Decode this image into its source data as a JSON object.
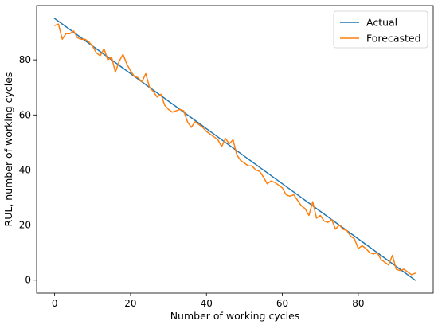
{
  "chart_data": {
    "type": "line",
    "title": "",
    "xlabel": "Number of working cycles",
    "ylabel": "RUL, number of working cycles",
    "xlim": [
      -4.75,
      99.75
    ],
    "ylim": [
      -4.7,
      99.7
    ],
    "xticks": [
      0,
      20,
      40,
      60,
      80
    ],
    "yticks": [
      0,
      20,
      40,
      60,
      80
    ],
    "grid": false,
    "legend": "top-right",
    "series": [
      {
        "name": "Actual",
        "color": "#1f77b4",
        "x": [
          0,
          95
        ],
        "y": [
          95,
          0
        ]
      },
      {
        "name": "Forecasted",
        "color": "#ff7f0e",
        "x": [
          0,
          1,
          2,
          3,
          4,
          5,
          6,
          7,
          8,
          9,
          10,
          11,
          12,
          13,
          14,
          15,
          16,
          17,
          18,
          19,
          20,
          21,
          22,
          23,
          24,
          25,
          26,
          27,
          28,
          29,
          30,
          31,
          32,
          33,
          34,
          35,
          36,
          37,
          38,
          39,
          40,
          41,
          42,
          43,
          44,
          45,
          46,
          47,
          48,
          49,
          50,
          51,
          52,
          53,
          54,
          55,
          56,
          57,
          58,
          59,
          60,
          61,
          62,
          63,
          64,
          65,
          66,
          67,
          68,
          69,
          70,
          71,
          72,
          73,
          74,
          75,
          76,
          77,
          78,
          79,
          80,
          81,
          82,
          83,
          84,
          85,
          86,
          87,
          88,
          89,
          90,
          91,
          92,
          93,
          94,
          95
        ],
        "y": [
          92.5,
          93.0,
          87.5,
          89.5,
          89.5,
          90.5,
          88.0,
          87.5,
          87.5,
          86.5,
          85.0,
          82.5,
          81.5,
          84.0,
          80.0,
          81.0,
          75.5,
          79.5,
          82.0,
          78.5,
          76.0,
          74.0,
          73.5,
          72.0,
          75.0,
          70.0,
          68.5,
          66.5,
          67.5,
          63.5,
          62.0,
          61.0,
          61.5,
          62.0,
          61.5,
          57.5,
          55.5,
          57.5,
          56.5,
          55.5,
          54.0,
          53.0,
          52.0,
          51.0,
          48.5,
          51.5,
          49.5,
          51.0,
          45.5,
          43.5,
          42.5,
          41.5,
          41.5,
          40.0,
          39.5,
          37.5,
          35.0,
          36.0,
          35.5,
          34.5,
          33.5,
          31.0,
          30.5,
          31.0,
          29.0,
          27.0,
          26.0,
          23.5,
          28.5,
          22.5,
          23.5,
          21.5,
          21.0,
          22.0,
          18.5,
          20.0,
          18.5,
          18.0,
          16.0,
          15.0,
          11.5,
          12.5,
          11.5,
          10.0,
          9.5,
          10.0,
          7.5,
          6.5,
          5.5,
          9.0,
          4.0,
          3.5,
          4.0,
          3.0,
          2.0,
          2.5
        ]
      }
    ]
  }
}
